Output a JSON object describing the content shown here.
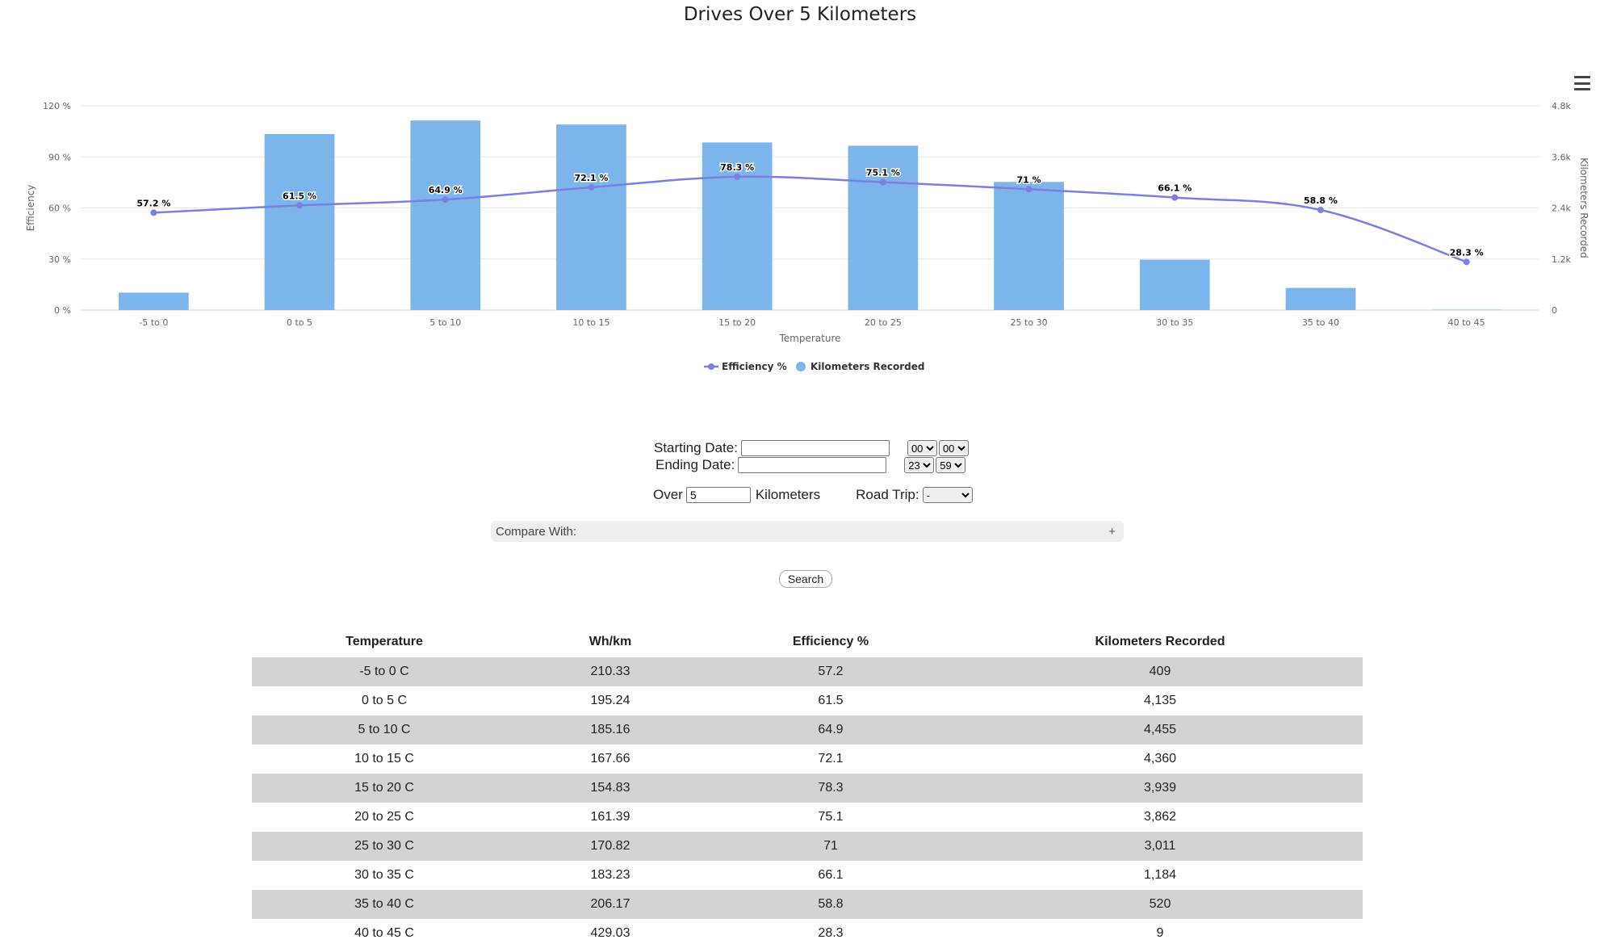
{
  "chart_data": {
    "type": "bar",
    "title": "Drives Over 5 Kilometers",
    "categories": [
      "-5 to 0",
      "0 to 5",
      "5 to 10",
      "10 to 15",
      "15 to 20",
      "20 to 25",
      "25 to 30",
      "30 to 35",
      "35 to 40",
      "40 to 45"
    ],
    "xlabel": "Temperature",
    "series": [
      {
        "name": "Efficiency %",
        "type": "line",
        "axis": "left",
        "color": "#7b7fe0",
        "values": [
          57.2,
          61.5,
          64.9,
          72.1,
          78.3,
          75.1,
          71,
          66.1,
          58.8,
          28.3
        ],
        "labels": [
          "57.2 %",
          "61.5 %",
          "64.9 %",
          "72.1 %",
          "78.3 %",
          "75.1 %",
          "71 %",
          "66.1 %",
          "58.8 %",
          "28.3 %"
        ]
      },
      {
        "name": "Kilometers Recorded",
        "type": "bar",
        "axis": "right",
        "color": "#7cb5ec",
        "values": [
          409,
          4135,
          4455,
          4360,
          3939,
          3862,
          3011,
          1184,
          520,
          9
        ]
      }
    ],
    "y_left": {
      "label": "Efficiency",
      "range": [
        0,
        120
      ],
      "ticks": [
        "0 %",
        "30 %",
        "60 %",
        "90 %",
        "120 %"
      ]
    },
    "y_right": {
      "label": "Kilometers Recorded",
      "range": [
        0,
        4800
      ],
      "ticks": [
        "0",
        "1.2k",
        "2.4k",
        "3.6k",
        "4.8k"
      ]
    },
    "grid": true,
    "legend": "bottom-center"
  },
  "form": {
    "starting_date_label": "Starting Date:",
    "starting_date_value": "",
    "start_hour": "00",
    "start_minute": "00",
    "ending_date_label": "Ending Date:",
    "ending_date_value": "",
    "end_hour": "23",
    "end_minute": "59",
    "over_label": "Over",
    "over_value": "5",
    "kilometers_label": "Kilometers",
    "road_trip_label": "Road Trip:",
    "road_trip_value": "-",
    "compare_label": "Compare With:",
    "compare_toggle": "+",
    "search_label": "Search"
  },
  "table": {
    "headers": [
      "Temperature",
      "Wh/km",
      "Efficiency %",
      "Kilometers Recorded"
    ],
    "rows": [
      [
        "-5 to 0 C",
        "210.33",
        "57.2",
        "409"
      ],
      [
        "0 to 5 C",
        "195.24",
        "61.5",
        "4,135"
      ],
      [
        "5 to 10 C",
        "185.16",
        "64.9",
        "4,455"
      ],
      [
        "10 to 15 C",
        "167.66",
        "72.1",
        "4,360"
      ],
      [
        "15 to 20 C",
        "154.83",
        "78.3",
        "3,939"
      ],
      [
        "20 to 25 C",
        "161.39",
        "75.1",
        "3,862"
      ],
      [
        "25 to 30 C",
        "170.82",
        "71",
        "3,011"
      ],
      [
        "30 to 35 C",
        "183.23",
        "66.1",
        "1,184"
      ],
      [
        "35 to 40 C",
        "206.17",
        "58.8",
        "520"
      ],
      [
        "40 to 45 C",
        "429.03",
        "28.3",
        "9"
      ]
    ]
  }
}
